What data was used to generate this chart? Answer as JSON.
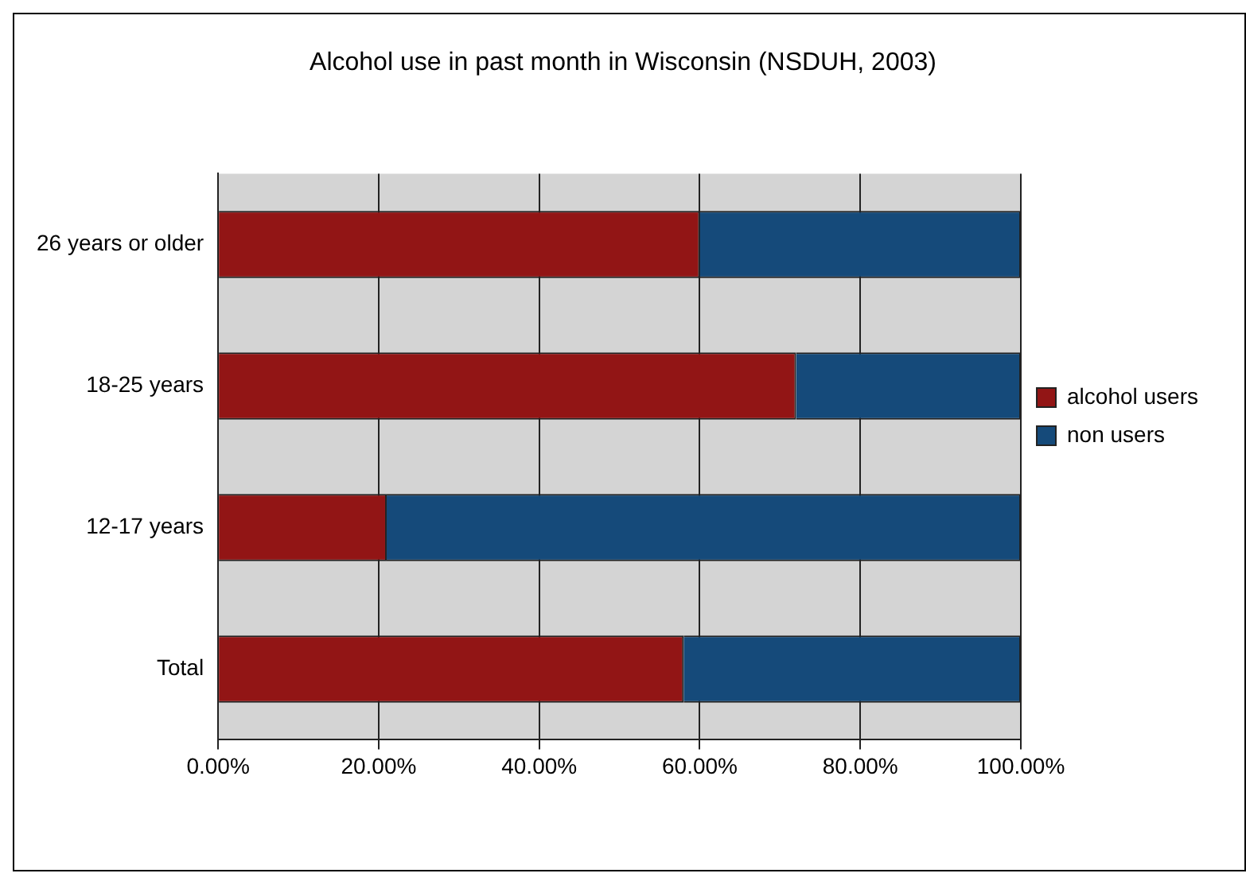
{
  "chart_data": {
    "type": "bar",
    "orientation": "horizontal",
    "stacked": true,
    "title": "Alcohol use in past month in Wisconsin (NSDUH, 2003)",
    "categories": [
      "26 years or older",
      "18-25 years",
      "12-17 years",
      "Total"
    ],
    "series": [
      {
        "name": "alcohol users",
        "color": "#921515",
        "values": [
          60,
          72,
          21,
          58
        ]
      },
      {
        "name": "non users",
        "color": "#154a7a",
        "values": [
          40,
          28,
          79,
          42
        ]
      }
    ],
    "xlim": [
      0,
      100
    ],
    "xticks": [
      {
        "value": 0,
        "label": "0.00%"
      },
      {
        "value": 20,
        "label": "20.00%"
      },
      {
        "value": 40,
        "label": "40.00%"
      },
      {
        "value": 60,
        "label": "60.00%"
      },
      {
        "value": 80,
        "label": "80.00%"
      },
      {
        "value": 100,
        "label": "100.00%"
      }
    ],
    "grid": "x",
    "legend": "right"
  }
}
